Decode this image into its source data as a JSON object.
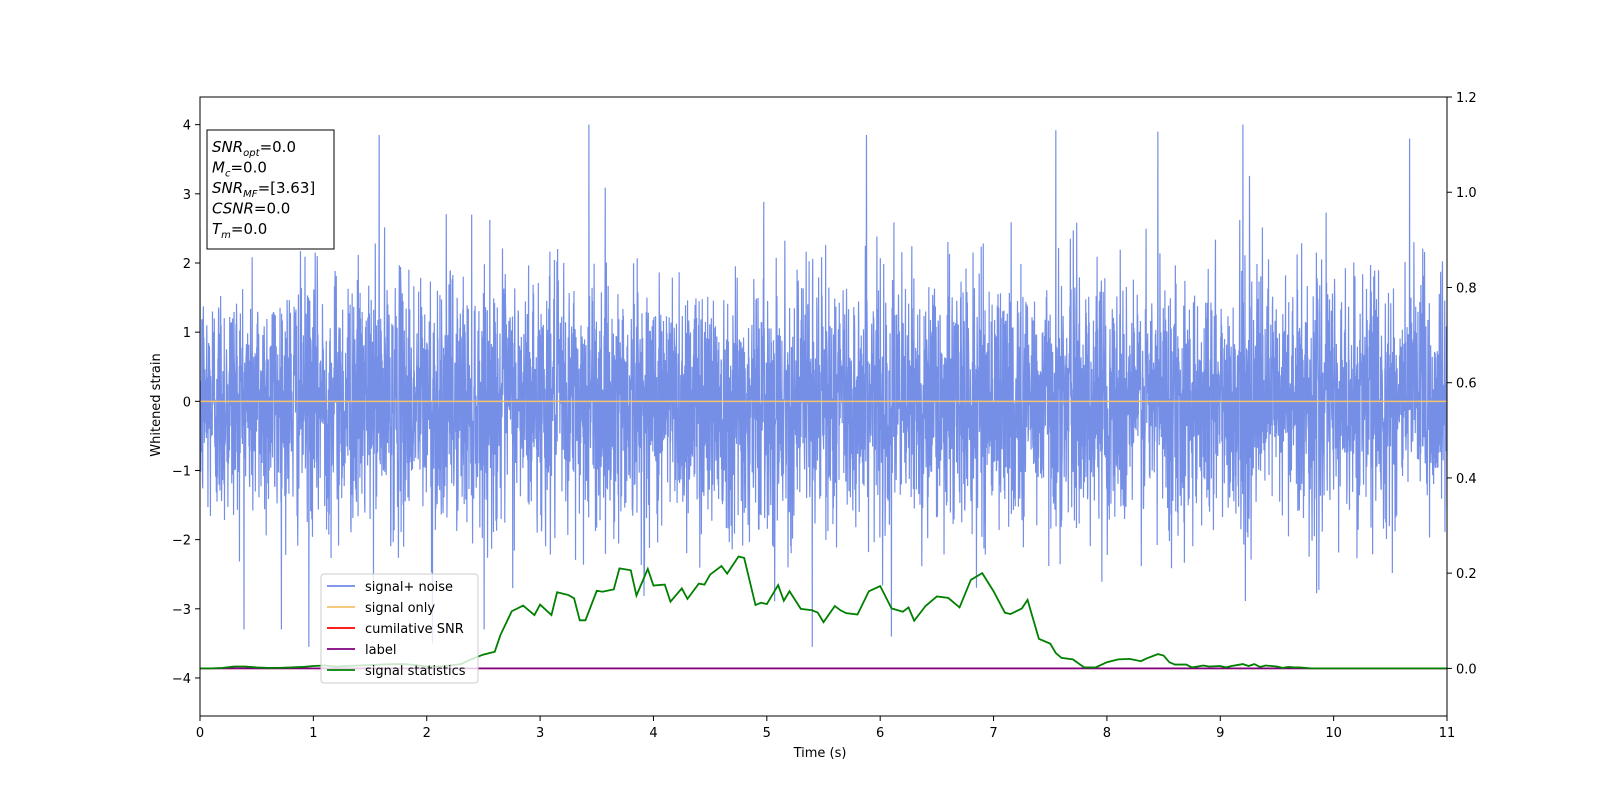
{
  "chart_data": {
    "type": "line",
    "title": "",
    "xlabel": "Time (s)",
    "ylabel": "Whitened strain",
    "y2label": "",
    "xlim": [
      0,
      11
    ],
    "ylim": [
      -4.55,
      4.4
    ],
    "y2lim": [
      -0.1,
      1.2
    ],
    "x_ticks": [
      0,
      1,
      2,
      3,
      4,
      5,
      6,
      7,
      8,
      9,
      10,
      11
    ],
    "x_tick_labels": [
      "0",
      "1",
      "2",
      "3",
      "4",
      "5",
      "6",
      "7",
      "8",
      "9",
      "10",
      "11"
    ],
    "y_ticks": [
      -4,
      -3,
      -2,
      -1,
      0,
      1,
      2,
      3,
      4
    ],
    "y_tick_labels": [
      "−4",
      "−3",
      "−2",
      "−1",
      "0",
      "1",
      "2",
      "3",
      "4"
    ],
    "y2_ticks": [
      0.0,
      0.2,
      0.4,
      0.6,
      0.8,
      1.0,
      1.2
    ],
    "y2_tick_labels": [
      "0.0",
      "0.2",
      "0.4",
      "0.6",
      "0.8",
      "1.0",
      "1.2"
    ],
    "grid": false,
    "legend_position": "lower-left",
    "series": [
      {
        "name": "signal+ noise",
        "color": "#6e89e6",
        "axis": "left",
        "kind": "whitened noise, approx. gaussian, sigma ~0.9, range -3.6 to 4.0",
        "x_range": [
          0,
          11
        ],
        "spikes": [
          {
            "x": 1.58,
            "y": 3.85
          },
          {
            "x": 3.43,
            "y": 4.0
          },
          {
            "x": 5.88,
            "y": 3.85
          },
          {
            "x": 7.55,
            "y": 3.92
          },
          {
            "x": 8.45,
            "y": 3.9
          },
          {
            "x": 9.2,
            "y": 4.0
          },
          {
            "x": 10.67,
            "y": 3.8
          },
          {
            "x": 0.96,
            "y": -3.55
          },
          {
            "x": 2.05,
            "y": -3.5
          },
          {
            "x": 5.4,
            "y": -3.55
          },
          {
            "x": 6.1,
            "y": -3.4
          }
        ]
      },
      {
        "name": "signal only",
        "color": "#f5c26b",
        "axis": "left",
        "x": [
          0,
          11
        ],
        "y": [
          0,
          0
        ]
      },
      {
        "name": "cumilative SNR",
        "color": "#ff0000",
        "axis": "right",
        "x": [
          0,
          11
        ],
        "y": [
          0,
          0
        ]
      },
      {
        "name": "label",
        "color": "#800080",
        "axis": "right",
        "x": [
          0,
          11
        ],
        "y": [
          0,
          0
        ]
      },
      {
        "name": "signal statistics",
        "color": "#008000",
        "axis": "right",
        "x": [
          0.0,
          0.1,
          0.2,
          0.3,
          0.4,
          0.5,
          0.6,
          0.7,
          0.8,
          0.9,
          1.0,
          1.1,
          1.2,
          1.3,
          1.4,
          1.5,
          1.6,
          1.7,
          1.8,
          1.9,
          2.0,
          2.1,
          2.2,
          2.3,
          2.4,
          2.5,
          2.6,
          2.65,
          2.75,
          2.85,
          2.95,
          3.0,
          3.1,
          3.15,
          3.25,
          3.3,
          3.35,
          3.4,
          3.5,
          3.55,
          3.65,
          3.7,
          3.8,
          3.85,
          3.95,
          4.0,
          4.1,
          4.15,
          4.25,
          4.3,
          4.4,
          4.45,
          4.5,
          4.6,
          4.65,
          4.75,
          4.8,
          4.9,
          4.95,
          5.0,
          5.1,
          5.15,
          5.2,
          5.3,
          5.4,
          5.45,
          5.5,
          5.6,
          5.65,
          5.7,
          5.8,
          5.9,
          6.0,
          6.1,
          6.2,
          6.25,
          6.3,
          6.4,
          6.5,
          6.6,
          6.7,
          6.8,
          6.9,
          7.0,
          7.1,
          7.15,
          7.25,
          7.3,
          7.4,
          7.5,
          7.55,
          7.6,
          7.7,
          7.8,
          7.9,
          8.0,
          8.1,
          8.2,
          8.3,
          8.35,
          8.45,
          8.5,
          8.55,
          8.6,
          8.7,
          8.75,
          8.8,
          8.85,
          8.9,
          9.0,
          9.05,
          9.1,
          9.15,
          9.2,
          9.25,
          9.3,
          9.35,
          9.4,
          9.5,
          9.55,
          9.6,
          9.65,
          9.7,
          9.75,
          9.8,
          9.9,
          10.0,
          10.1,
          10.2,
          10.3,
          10.4,
          10.5,
          10.6,
          10.7,
          10.8,
          10.9,
          11.0
        ],
        "y": [
          0.0,
          0.0,
          0.001,
          0.004,
          0.004,
          0.002,
          0.001,
          0.001,
          0.002,
          0.003,
          0.005,
          0.006,
          0.004,
          0.005,
          0.006,
          0.007,
          0.008,
          0.009,
          0.009,
          0.007,
          0.004,
          0.004,
          0.006,
          0.009,
          0.02,
          0.029,
          0.035,
          0.07,
          0.12,
          0.132,
          0.112,
          0.134,
          0.112,
          0.16,
          0.154,
          0.147,
          0.101,
          0.101,
          0.163,
          0.161,
          0.166,
          0.21,
          0.206,
          0.153,
          0.209,
          0.174,
          0.176,
          0.14,
          0.168,
          0.146,
          0.178,
          0.176,
          0.197,
          0.215,
          0.199,
          0.235,
          0.232,
          0.133,
          0.138,
          0.135,
          0.175,
          0.142,
          0.162,
          0.125,
          0.122,
          0.117,
          0.097,
          0.131,
          0.122,
          0.116,
          0.113,
          0.162,
          0.173,
          0.126,
          0.119,
          0.128,
          0.1,
          0.131,
          0.151,
          0.148,
          0.128,
          0.186,
          0.2,
          0.162,
          0.117,
          0.114,
          0.126,
          0.144,
          0.062,
          0.052,
          0.032,
          0.022,
          0.019,
          0.002,
          0.002,
          0.013,
          0.019,
          0.02,
          0.015,
          0.021,
          0.03,
          0.027,
          0.013,
          0.008,
          0.008,
          0.002,
          0.004,
          0.006,
          0.004,
          0.005,
          0.002,
          0.005,
          0.007,
          0.009,
          0.005,
          0.009,
          0.003,
          0.006,
          0.004,
          0.001,
          0.003,
          0.002,
          0.002,
          0.001,
          0.0,
          0.0,
          0.0,
          0.0,
          0.0,
          0.0,
          0.0,
          0.0,
          0.0,
          0.0,
          0.0,
          0.0,
          0.0
        ]
      }
    ],
    "annotations": [
      {
        "type": "text-box",
        "position": "top-left",
        "lines": [
          {
            "base": "SNR",
            "sub": "opt",
            "rest": "=0.0"
          },
          {
            "base": "M",
            "sub": "c",
            "rest": "=0.0"
          },
          {
            "base": "SNR",
            "sub": "MF",
            "rest": "=[3.63]"
          },
          {
            "base": "CSNR",
            "sub": "",
            "rest": "=0.0"
          },
          {
            "base": "T",
            "sub": "m",
            "rest": "=0.0"
          }
        ]
      }
    ]
  }
}
